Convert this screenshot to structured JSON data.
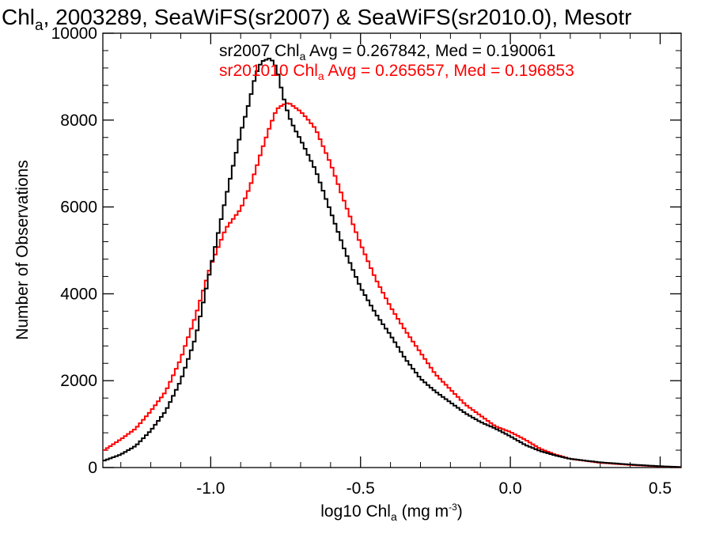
{
  "chart_data": {
    "type": "line",
    "title": {
      "prefix": "Chl",
      "sub": "a",
      "rest": ", 2003289, SeaWiFS(sr2007) & SeaWiFS(sr2010.0), Mesotr"
    },
    "xlabel": {
      "prefix": "log10 Chl",
      "sub": "a",
      "mid": " (mg m",
      "sup": "-3",
      "suffix": ")"
    },
    "ylabel": "Number of Observations",
    "xlim": [
      -1.36,
      0.57
    ],
    "ylim": [
      0,
      10000
    ],
    "xticks": [
      {
        "value": -1.0,
        "label": "-1.0"
      },
      {
        "value": -0.5,
        "label": "-0.5"
      },
      {
        "value": 0.0,
        "label": "0.0"
      },
      {
        "value": 0.5,
        "label": "0.5"
      }
    ],
    "yticks": [
      {
        "value": 0,
        "label": "0"
      },
      {
        "value": 2000,
        "label": "2000"
      },
      {
        "value": 4000,
        "label": "4000"
      },
      {
        "value": 6000,
        "label": "6000"
      },
      {
        "value": 8000,
        "label": "8000"
      },
      {
        "value": 10000,
        "label": "10000"
      }
    ],
    "grid": false,
    "series": [
      {
        "name": "sr2007",
        "color": "#000000",
        "x": [
          -1.36,
          -1.3,
          -1.25,
          -1.2,
          -1.15,
          -1.1,
          -1.05,
          -1.0,
          -0.95,
          -0.9,
          -0.87,
          -0.85,
          -0.83,
          -0.8,
          -0.78,
          -0.76,
          -0.74,
          -0.72,
          -0.7,
          -0.65,
          -0.6,
          -0.55,
          -0.5,
          -0.45,
          -0.4,
          -0.35,
          -0.3,
          -0.25,
          -0.2,
          -0.15,
          -0.1,
          -0.05,
          0.0,
          0.05,
          0.1,
          0.15,
          0.2,
          0.3,
          0.4,
          0.5,
          0.57
        ],
        "y": [
          150,
          300,
          500,
          850,
          1300,
          2000,
          3000,
          4600,
          6200,
          7700,
          8450,
          9050,
          9350,
          9430,
          9200,
          8600,
          8100,
          7800,
          7550,
          6850,
          5900,
          4950,
          4150,
          3550,
          3050,
          2500,
          2050,
          1750,
          1500,
          1250,
          1050,
          900,
          720,
          520,
          380,
          280,
          200,
          120,
          70,
          30,
          10
        ]
      },
      {
        "name": "sr201010",
        "color": "#ff0000",
        "x": [
          -1.36,
          -1.3,
          -1.25,
          -1.2,
          -1.15,
          -1.1,
          -1.05,
          -1.0,
          -0.95,
          -0.9,
          -0.87,
          -0.85,
          -0.83,
          -0.8,
          -0.78,
          -0.76,
          -0.74,
          -0.72,
          -0.7,
          -0.68,
          -0.65,
          -0.6,
          -0.55,
          -0.5,
          -0.45,
          -0.4,
          -0.35,
          -0.3,
          -0.25,
          -0.2,
          -0.15,
          -0.1,
          -0.05,
          0.0,
          0.05,
          0.1,
          0.15,
          0.2,
          0.3,
          0.4,
          0.5,
          0.57
        ],
        "y": [
          380,
          650,
          900,
          1300,
          1750,
          2500,
          3500,
          4650,
          5500,
          5950,
          6450,
          6850,
          7300,
          7900,
          8250,
          8350,
          8400,
          8300,
          8200,
          8050,
          7800,
          7000,
          6050,
          5150,
          4350,
          3700,
          3150,
          2650,
          2150,
          1800,
          1450,
          1200,
          950,
          820,
          640,
          430,
          300,
          200,
          110,
          60,
          25,
          10
        ]
      }
    ],
    "legend": [
      {
        "prefix": "sr2007 Chl",
        "sub": "a",
        "text": " Avg = 0.267842, Med = 0.190061",
        "color": "#000000"
      },
      {
        "prefix": "sr201010 Chl",
        "sub": "a",
        "text": " Avg = 0.265657, Med = 0.196853",
        "color": "#ff0000"
      }
    ]
  }
}
